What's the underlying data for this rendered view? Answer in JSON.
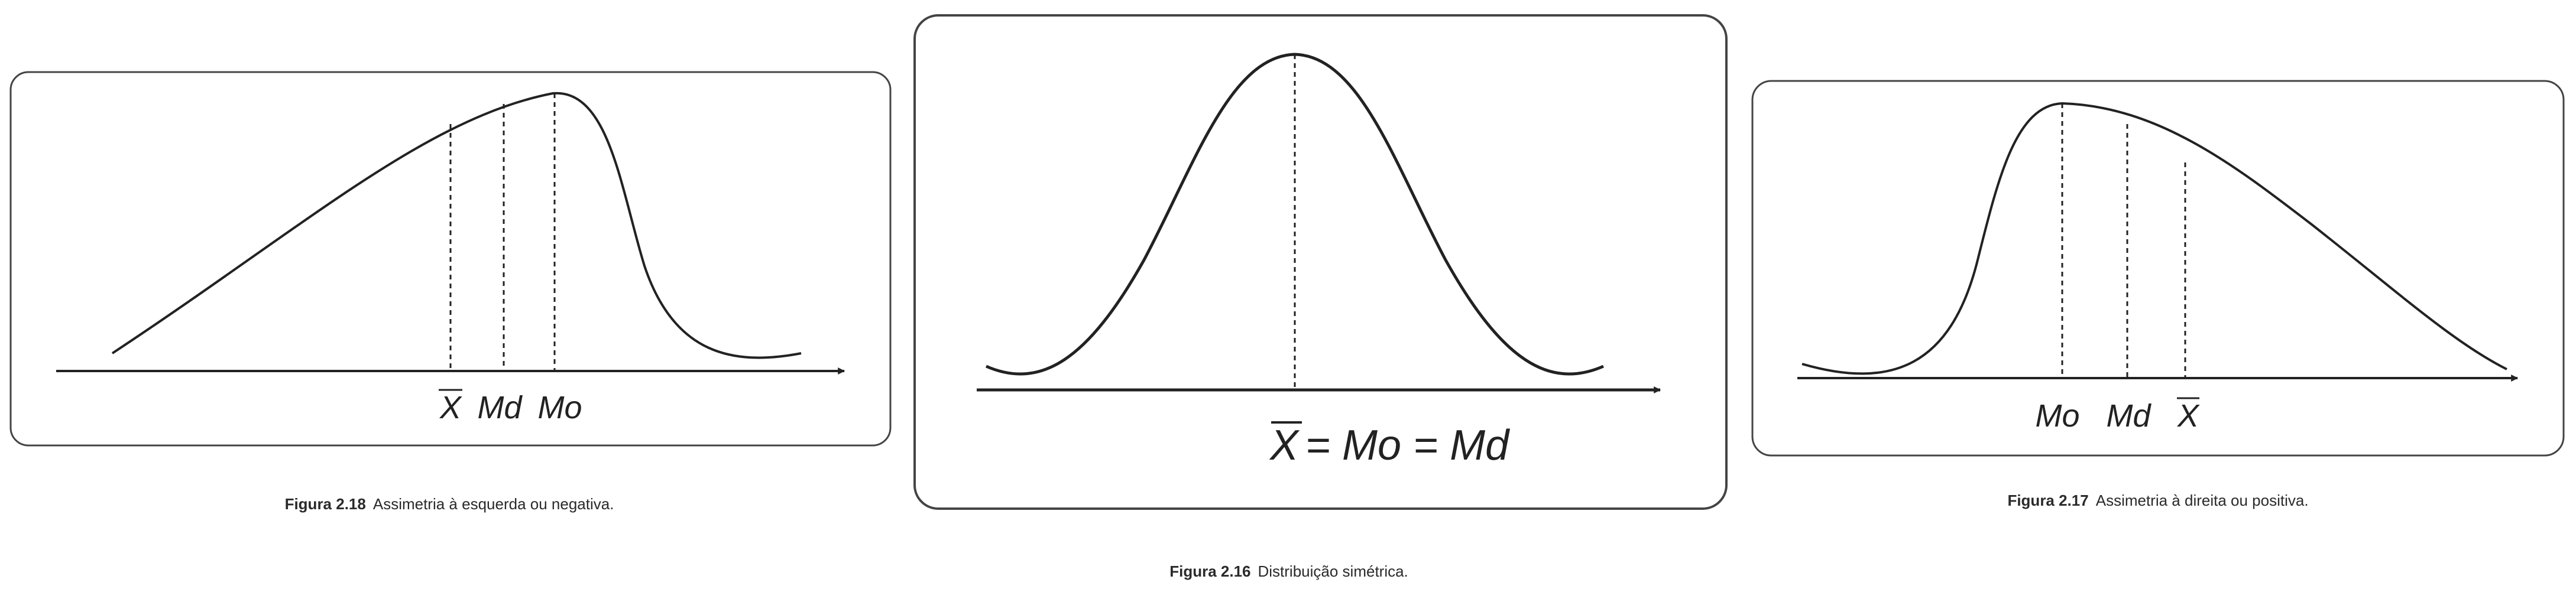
{
  "figures": {
    "left": {
      "caption_number": "Figura 2.18",
      "caption_text": "Assimetria à esquerda ou negativa.",
      "labels": {
        "mean": "X",
        "median": "Md",
        "mode": "Mo"
      }
    },
    "middle": {
      "caption_number": "Figura 2.16",
      "caption_text": "Distribuição simétrica.",
      "labels": {
        "mean": "X",
        "equation": "= Mo = Md"
      }
    },
    "right": {
      "caption_number": "Figura 2.17",
      "caption_text": "Assimetria à direita ou positiva.",
      "labels": {
        "mode": "Mo",
        "median": "Md",
        "mean": "X"
      }
    }
  }
}
